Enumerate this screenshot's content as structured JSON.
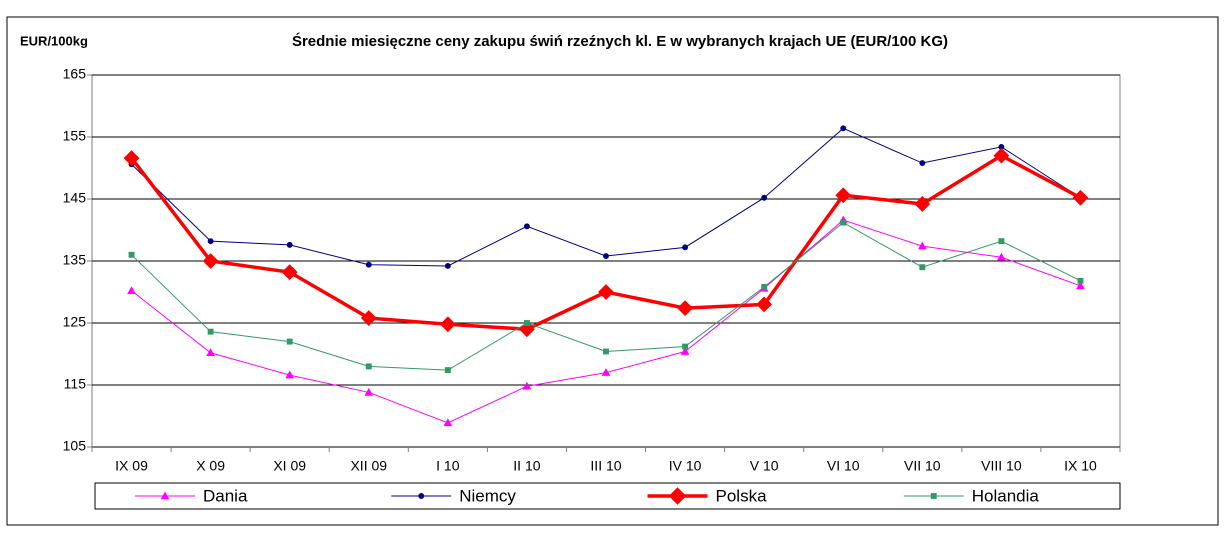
{
  "chart_data": {
    "type": "line",
    "title": "Średnie miesięczne ceny zakupu świń rzeźnych kl. E w wybranych krajach UE (EUR/100 KG)",
    "y_label": "EUR/100kg",
    "categories": [
      "IX 09",
      "X 09",
      "XI 09",
      "XII 09",
      "I 10",
      "II 10",
      "III 10",
      "IV 10",
      "V 10",
      "VI 10",
      "VII 10",
      "VIII 10",
      "IX 10"
    ],
    "series": [
      {
        "name": "Dania",
        "color": "#ff00ff",
        "marker": "triangle",
        "line_width": 1,
        "values": [
          130.2,
          120.2,
          116.6,
          113.8,
          108.9,
          114.8,
          117.0,
          120.4,
          130.6,
          141.6,
          137.4,
          135.6,
          131.0
        ]
      },
      {
        "name": "Niemcy",
        "color": "#000080",
        "marker": "circle",
        "line_width": 1,
        "values": [
          150.6,
          138.2,
          137.6,
          134.4,
          134.2,
          140.6,
          135.8,
          137.2,
          145.2,
          156.4,
          150.8,
          153.4,
          145.2
        ]
      },
      {
        "name": "Polska",
        "color": "#ff0000",
        "marker": "diamond",
        "line_width": 3.5,
        "values": [
          151.6,
          135.0,
          133.2,
          125.8,
          124.8,
          124.0,
          130.0,
          127.4,
          128.0,
          145.6,
          144.2,
          152.0,
          145.2
        ]
      },
      {
        "name": "Holandia",
        "color": "#339966",
        "marker": "square",
        "line_width": 1,
        "values": [
          136.0,
          123.6,
          122.0,
          118.0,
          117.4,
          125.0,
          120.4,
          121.2,
          130.8,
          141.2,
          134.0,
          138.2,
          131.8
        ]
      }
    ],
    "ylim": [
      105,
      165
    ],
    "yticks": [
      105,
      115,
      125,
      135,
      145,
      155,
      165
    ],
    "grid": true,
    "legend": "bottom"
  }
}
